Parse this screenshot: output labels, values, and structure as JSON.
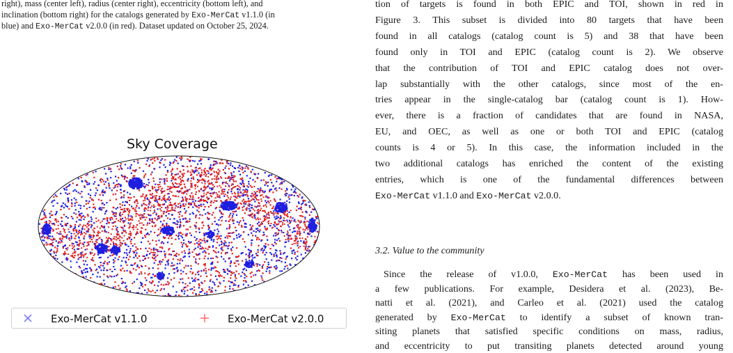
{
  "caption": {
    "line1": [
      {
        "t": "right), mass (center left), radius (center right), eccentricity (bottom left), and",
        "mono": false
      }
    ],
    "line2": [
      {
        "t": "inclination (bottom right) for the catalogs generated by ",
        "mono": false
      },
      {
        "t": "Exo-MerCat",
        "mono": true
      },
      {
        "t": " v1.1.0 (in",
        "mono": false
      }
    ],
    "line3": [
      {
        "t": "blue) and ",
        "mono": false
      },
      {
        "t": "Exo-MerCat",
        "mono": true
      },
      {
        "t": " v2.0.0 (in red). Dataset updated on October 25, 2024.",
        "mono": false
      }
    ]
  },
  "plot": {
    "title": "Sky Coverage",
    "legend": [
      {
        "symbol": "×",
        "label": "Exo-MerCat v1.1.0",
        "color": "#6b6bff"
      },
      {
        "symbol": "+",
        "label": "Exo-MerCat v2.0.0",
        "color": "#ff6b6b"
      }
    ],
    "colors": {
      "v1": "#1f1fe0",
      "v2": "#e0201f"
    },
    "projection": "Mollweide (ellipse)",
    "grid": false
  },
  "body": {
    "para1": [
      [
        "tion of targets is found in both EPIC and TOI, shown in red in"
      ],
      [
        "Figure 3. This subset is divided into 80 targets that have been"
      ],
      [
        "found in all catalogs (catalog count is 5) and 38 that have been"
      ],
      [
        "found only in TOI and EPIC (catalog count is 2). We observe"
      ],
      [
        "that the contribution of TOI and EPIC catalog does not over-"
      ],
      [
        "lap substantially with the other catalogs, since most of the en-"
      ],
      [
        "tries appear in the single-catalog bar (catalog count is 1). How-"
      ],
      [
        "ever, there is a fraction of candidates that are found in NASA,"
      ],
      [
        "EU, and OEC, as well as one or both TOI and EPIC (catalog"
      ],
      [
        "counts is 4 or 5). In this case, the information included in the"
      ],
      [
        "two additional catalogs has enriched the content of the existing"
      ],
      [
        "entries, which is one of the fundamental differences between"
      ]
    ],
    "para1_last": [
      {
        "t": "Exo-MerCat",
        "mono": true
      },
      {
        "t": " v1.1.0 and ",
        "mono": false
      },
      {
        "t": "Exo-MerCat",
        "mono": true
      },
      {
        "t": " v2.0.0.",
        "mono": false
      }
    ],
    "section_title": "3.2. Value to the community",
    "para2": [
      [
        {
          "t": "Since the release of v1.0.0, ",
          "mono": false
        },
        {
          "t": "Exo-MerCat",
          "mono": true
        },
        {
          "t": " has been used in",
          "mono": false
        }
      ],
      [
        {
          "t": "a few publications. For example, Desidera et al. (2023), Be-",
          "mono": false
        }
      ],
      [
        {
          "t": "natti et al. (2021), and Carleo et al. (2021) used the catalog",
          "mono": false
        }
      ],
      [
        {
          "t": "generated by ",
          "mono": false
        },
        {
          "t": "Exo-MerCat",
          "mono": true
        },
        {
          "t": " to identify a subset of known tran-",
          "mono": false
        }
      ],
      [
        {
          "t": "siting planets that satisfied specific conditions on mass, radius,",
          "mono": false
        }
      ],
      [
        {
          "t": "and eccentricity to put transiting planets detected around young",
          "mono": false
        }
      ]
    ]
  }
}
